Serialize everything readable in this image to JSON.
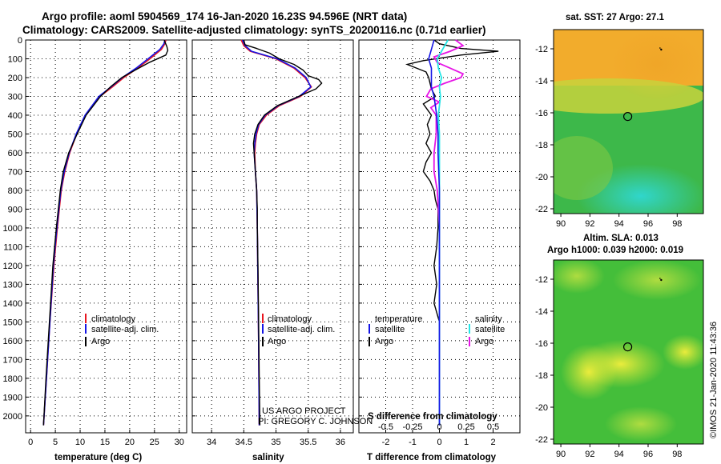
{
  "title_line1": "Argo profile: aoml 5904569_174 16-Jan-2020 16.23S 94.596E (NRT data)",
  "title_line2": "Climatology: CARS2009. Satellite-adjusted climatology: synTS_20200116.nc (0.71d earlier)",
  "footer_vertical": "©IMOS 21-Jan-2020 11:43:36",
  "project_line1": "US ARGO PROJECT",
  "project_line2": "PI: GREGORY C. JOHNSON",
  "colors": {
    "climatology": "#e8141e",
    "satellite": "#1414e6",
    "argo": "#000000",
    "sat_salinity": "#22e6e6",
    "argo_salinity": "#e614e6"
  },
  "chart_data": [
    {
      "type": "line",
      "id": "temperature",
      "xlabel": "temperature (deg C)",
      "xlim": [
        -1,
        31.5
      ],
      "ylim": [
        2090,
        0
      ],
      "x_ticks": [
        "0",
        "5",
        "10",
        "15",
        "20",
        "25",
        "30"
      ],
      "x_tick_values": [
        0,
        5,
        10,
        15,
        20,
        25,
        30
      ],
      "depth_ticks": [
        "0",
        "100",
        "200",
        "300",
        "400",
        "500",
        "600",
        "700",
        "800",
        "900",
        "1000",
        "1100",
        "1200",
        "1300",
        "1400",
        "1500",
        "1600",
        "1700",
        "1800",
        "1900",
        "2000"
      ],
      "legend": [
        "climatology",
        "satellite-adj. clim.",
        "Argo"
      ],
      "series": [
        {
          "name": "climatology",
          "depth": [
            0,
            20,
            50,
            100,
            150,
            200,
            250,
            300,
            400,
            500,
            600,
            700,
            800,
            1000,
            1200,
            1500,
            1800,
            2050
          ],
          "values": [
            27.3,
            27.1,
            26.4,
            24.1,
            21.6,
            18.8,
            16.5,
            14.0,
            11.1,
            9.3,
            7.9,
            6.9,
            6.2,
            5.4,
            4.7,
            3.9,
            3.2,
            2.6
          ]
        },
        {
          "name": "satellite-adj. clim.",
          "depth": [
            0,
            20,
            50,
            100,
            150,
            200,
            250,
            300,
            400,
            500,
            600,
            700,
            800,
            1000,
            1200,
            1500,
            1800,
            2050
          ],
          "values": [
            27.1,
            26.9,
            26.1,
            23.7,
            21.3,
            18.5,
            16.2,
            13.8,
            11.0,
            9.2,
            7.8,
            6.8,
            6.1,
            5.3,
            4.6,
            3.9,
            3.2,
            2.6
          ]
        },
        {
          "name": "Argo",
          "depth": [
            0,
            10,
            35,
            55,
            80,
            120,
            160,
            200,
            250,
            300,
            400,
            500,
            600,
            700,
            800,
            1000,
            1200,
            1500,
            1800,
            2050
          ],
          "values": [
            27.0,
            27.1,
            27.5,
            27.7,
            27.3,
            23.9,
            21.1,
            18.4,
            16.1,
            14.1,
            11.2,
            9.4,
            7.7,
            6.6,
            6.0,
            5.2,
            4.5,
            3.8,
            3.1,
            2.6
          ]
        }
      ]
    },
    {
      "type": "line",
      "id": "salinity",
      "xlabel": "salinity",
      "xlim": [
        33.7,
        36.2
      ],
      "ylim": [
        2090,
        0
      ],
      "x_ticks": [
        "34",
        "34.5",
        "35",
        "35.5",
        "36"
      ],
      "x_tick_values": [
        34,
        34.5,
        35,
        35.5,
        36
      ],
      "legend": [
        "climatology",
        "satellite-adj. clim.",
        "Argo"
      ],
      "series": [
        {
          "name": "climatology",
          "depth": [
            0,
            30,
            60,
            100,
            150,
            200,
            250,
            300,
            350,
            400,
            450,
            500,
            550,
            600,
            700,
            800,
            1000,
            1300,
            1600,
            2050
          ],
          "values": [
            34.46,
            34.5,
            34.6,
            35.0,
            35.28,
            35.45,
            35.55,
            35.38,
            35.05,
            34.85,
            34.74,
            34.7,
            34.68,
            34.67,
            34.68,
            34.7,
            34.71,
            34.72,
            34.73,
            34.74
          ]
        },
        {
          "name": "satellite-adj. clim.",
          "depth": [
            0,
            30,
            60,
            100,
            150,
            200,
            250,
            300,
            350,
            400,
            450,
            500,
            550,
            600,
            700,
            800,
            1000,
            1300,
            1600,
            2050
          ],
          "values": [
            34.48,
            34.52,
            34.62,
            35.02,
            35.3,
            35.47,
            35.54,
            35.36,
            35.03,
            34.83,
            34.73,
            34.69,
            34.67,
            34.66,
            34.68,
            34.7,
            34.71,
            34.72,
            34.73,
            34.74
          ]
        },
        {
          "name": "Argo",
          "depth": [
            0,
            25,
            45,
            70,
            100,
            130,
            160,
            190,
            210,
            230,
            260,
            300,
            350,
            400,
            450,
            500,
            550,
            600,
            700,
            800,
            900,
            1000,
            1200,
            1500,
            1800,
            2050
          ],
          "values": [
            34.5,
            34.52,
            34.7,
            34.9,
            35.05,
            35.28,
            35.42,
            35.5,
            35.66,
            35.71,
            35.62,
            35.35,
            35.02,
            34.82,
            34.72,
            34.67,
            34.65,
            34.66,
            34.68,
            34.7,
            34.71,
            34.71,
            34.72,
            34.73,
            34.74,
            34.75
          ]
        }
      ]
    },
    {
      "type": "line",
      "id": "difference",
      "xlabel": "T difference from climatology",
      "xlabel_top": "S difference from climatology",
      "xlim": [
        -3,
        3
      ],
      "ylim": [
        2090,
        0
      ],
      "x_ticks": [
        "-2",
        "-1",
        "0",
        "1",
        "2"
      ],
      "x_tick_values": [
        -2,
        -1,
        0,
        1,
        2
      ],
      "s_ticks": [
        "-0.5",
        "-0.25",
        "0",
        "0.25",
        "0.5"
      ],
      "s_tick_values": [
        -0.5,
        -0.25,
        0,
        0.25,
        0.5
      ],
      "s_scale": 4,
      "legend_temperature": [
        "temperature",
        "satellite",
        "Argo"
      ],
      "legend_salinity": [
        "salinity",
        "satellite",
        "Argo"
      ],
      "series": [
        {
          "name": "T satellite",
          "depth": [
            0,
            50,
            100,
            150,
            200,
            250,
            300,
            400,
            500,
            600,
            800,
            1000,
            1500,
            2050
          ],
          "values": [
            -0.2,
            -0.3,
            -0.4,
            -0.3,
            -0.3,
            -0.3,
            -0.2,
            -0.1,
            -0.05,
            -0.05,
            0,
            0,
            0,
            0
          ]
        },
        {
          "name": "T Argo",
          "depth": [
            0,
            20,
            45,
            60,
            80,
            110,
            130,
            170,
            200,
            260,
            300,
            340,
            400,
            450,
            500,
            550,
            600,
            650,
            700,
            750,
            800,
            850,
            900,
            1000,
            1100,
            1200,
            1300,
            1400,
            1500,
            1800,
            2050
          ],
          "values": [
            -0.2,
            0.0,
            0.8,
            2.2,
            0.8,
            -0.6,
            -1.2,
            -0.5,
            -0.4,
            -0.3,
            -0.15,
            -0.6,
            -0.3,
            -0.45,
            -0.35,
            -0.5,
            -0.3,
            -0.5,
            -0.6,
            -0.35,
            -0.2,
            -0.15,
            -0.05,
            -0.05,
            -0.1,
            -0.2,
            -0.1,
            -0.2,
            0,
            0,
            0
          ]
        },
        {
          "name": "S satellite",
          "depth": [
            0,
            50,
            100,
            150,
            200,
            250,
            300,
            400,
            500,
            800,
            1200,
            1600,
            2050
          ],
          "values": [
            0.08,
            0.03,
            -0.02,
            -0.01,
            0.02,
            0.0,
            0.01,
            -0.01,
            0.0,
            0.0,
            0.0,
            0.0,
            0.0
          ]
        },
        {
          "name": "S Argo",
          "depth": [
            0,
            30,
            60,
            90,
            120,
            150,
            180,
            200,
            230,
            260,
            300,
            330,
            360,
            400,
            500,
            600,
            700,
            800,
            1000,
            1500,
            2050
          ],
          "values": [
            0.15,
            0.22,
            0.1,
            -0.05,
            -0.02,
            0.1,
            0.22,
            0.2,
            0.05,
            -0.08,
            -0.12,
            0.0,
            -0.08,
            -0.03,
            -0.03,
            -0.05,
            -0.05,
            -0.02,
            0.0,
            0.0,
            0.0
          ]
        }
      ]
    },
    {
      "type": "heatmap",
      "id": "sst_map",
      "title": "sat. SST: 27 Argo: 27.1",
      "x_ticks": [
        "90",
        "92",
        "94",
        "96",
        "98"
      ],
      "x_tick_values": [
        90,
        92,
        94,
        96,
        98
      ],
      "y_ticks": [
        "-12",
        "-14",
        "-16",
        "-18",
        "-20",
        "-22"
      ],
      "y_tick_values": [
        -12,
        -14,
        -16,
        -18,
        -20,
        -22
      ],
      "xlim": [
        89.5,
        99.8
      ],
      "ylim": [
        -22.3,
        -10.8
      ],
      "argo_position": [
        94.6,
        -16.23
      ]
    },
    {
      "type": "heatmap",
      "id": "sla_map",
      "title_line1": "Altim. SLA: 0.013",
      "title_line2": "Argo h1000: 0.039 h2000: 0.019",
      "x_ticks": [
        "90",
        "92",
        "94",
        "96",
        "98"
      ],
      "x_tick_values": [
        90,
        92,
        94,
        96,
        98
      ],
      "y_ticks": [
        "-12",
        "-14",
        "-16",
        "-18",
        "-20",
        "-22"
      ],
      "y_tick_values": [
        -12,
        -14,
        -16,
        -18,
        -20,
        -22
      ],
      "xlim": [
        89.5,
        99.8
      ],
      "ylim": [
        -22.3,
        -10.8
      ],
      "argo_position": [
        94.6,
        -16.23
      ]
    }
  ]
}
